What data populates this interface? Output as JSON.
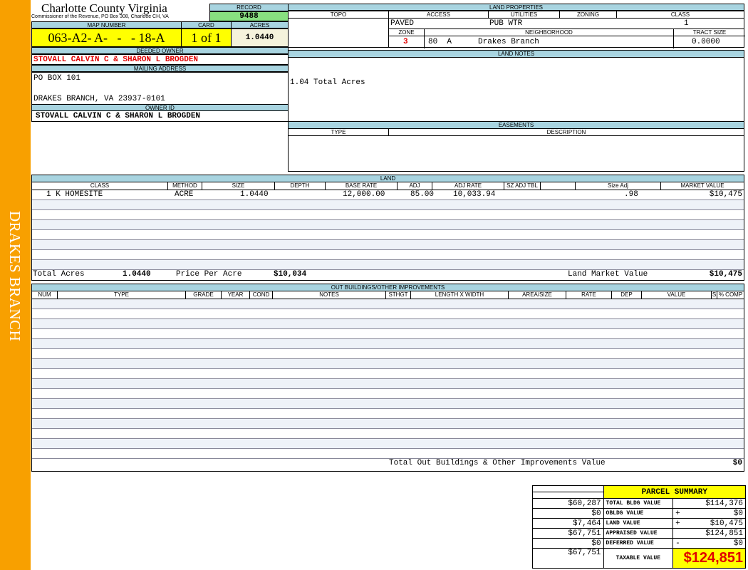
{
  "sidebar": {
    "title": "DRAKES BRANCH"
  },
  "header": {
    "title": "Charlotte County Virginia",
    "subtitle": "Commissioner of the Revenue, PO Box 308, Charlotte CH, VA"
  },
  "record": {
    "label": "RECORD",
    "value": "9488"
  },
  "map": {
    "label": "MAP NUMBER",
    "value": "063-A2- A-   -   - 18-A",
    "card_label": "CARD",
    "card": "1 of 1",
    "acres_label": "ACRES",
    "acres": "1.0440"
  },
  "owner": {
    "deeded_label": "DEEDED OWNER",
    "deeded": "STOVALL CALVIN C & SHARON L BROGDEN",
    "mailing_label": "MAILING ADDRESS",
    "address1": "PO BOX 101",
    "address2": "DRAKES BRANCH, VA 23937-0101",
    "id_label": "OWNER ID",
    "id": "STOVALL CALVIN C & SHARON L BROGDEN"
  },
  "land_properties": {
    "label": "LAND PROPERTIES",
    "cols": [
      "TOPO",
      "ACCESS",
      "UTILITIES",
      "ZONING",
      "CLASS"
    ],
    "access": "PAVED",
    "utilities": "PUB WTR",
    "class": "1",
    "zone_label": "ZONE",
    "neighborhood_label": "NEIGHBORHOOD",
    "tract_label": "TRACT SIZE",
    "zone": "3",
    "nbhd_code": "80  A",
    "neighborhood": "Drakes Branch",
    "tract": "0.0000"
  },
  "land_notes": {
    "label": "LAND NOTES",
    "text": "1.04 Total Acres"
  },
  "easements": {
    "label": "EASEMENTS",
    "type": "TYPE",
    "description": "DESCRIPTION"
  },
  "land": {
    "label": "LAND",
    "cols": [
      "CLASS",
      "METHOD",
      "SIZE",
      "DEPTH",
      "BASE RATE",
      "ADJ",
      "ADJ RATE",
      "SZ ADJ TBL",
      "Size Adj",
      "MARKET VALUE"
    ],
    "rows": [
      {
        "class": "1 K HOMESITE",
        "method": "ACRE",
        "size": "1.0440",
        "base_rate": "12,000.00",
        "adj": "85.00",
        "adj_rate": "10,033.94",
        "size_adj": ".98",
        "market": "$10,475"
      }
    ],
    "total_acres_label": "Total Acres",
    "total_acres": "1.0440",
    "ppa_label": "Price Per Acre",
    "ppa": "$10,034",
    "lmv_label": "Land Market Value",
    "lmv": "$10,475"
  },
  "outbuildings": {
    "label": "OUT BUILDINGS/OTHER IMPROVEMENTS",
    "cols": [
      "NUM",
      "TYPE",
      "GRADE",
      "YEAR",
      "COND",
      "NOTES",
      "STHGT",
      "LENGTH X WIDTH",
      "AREA/SIZE",
      "RATE",
      "DEP",
      "VALUE",
      "S",
      "% COMP"
    ],
    "total_label": "Total Out Buildings & Other Improvements Value",
    "total": "$0"
  },
  "summary": {
    "title": "PARCEL SUMMARY",
    "rows": [
      {
        "left": "$60,287",
        "label": "TOTAL BLDG VALUE",
        "op": "",
        "value": "$114,376"
      },
      {
        "left": "$0",
        "label": "OBLDG VALUE",
        "op": "+",
        "value": "$0"
      },
      {
        "left": "$7,464",
        "label": "LAND VALUE",
        "op": "+",
        "value": "$10,475"
      },
      {
        "left": "$67,751",
        "label": "APPRAISED VALUE",
        "op": "",
        "value": "$124,851"
      },
      {
        "left": "$0",
        "label": "DEFERRED VALUE",
        "op": "-",
        "value": "$0"
      }
    ],
    "taxable_left": "$67,751",
    "taxable_label": "TAXABLE VALUE",
    "taxable": "$124,851"
  },
  "colors": {
    "sidebar": "#f8a000",
    "header_blue": "#a8d4e0",
    "yellow": "#ffff00",
    "record_green": "#88e080",
    "owner_red": "#e00000"
  }
}
